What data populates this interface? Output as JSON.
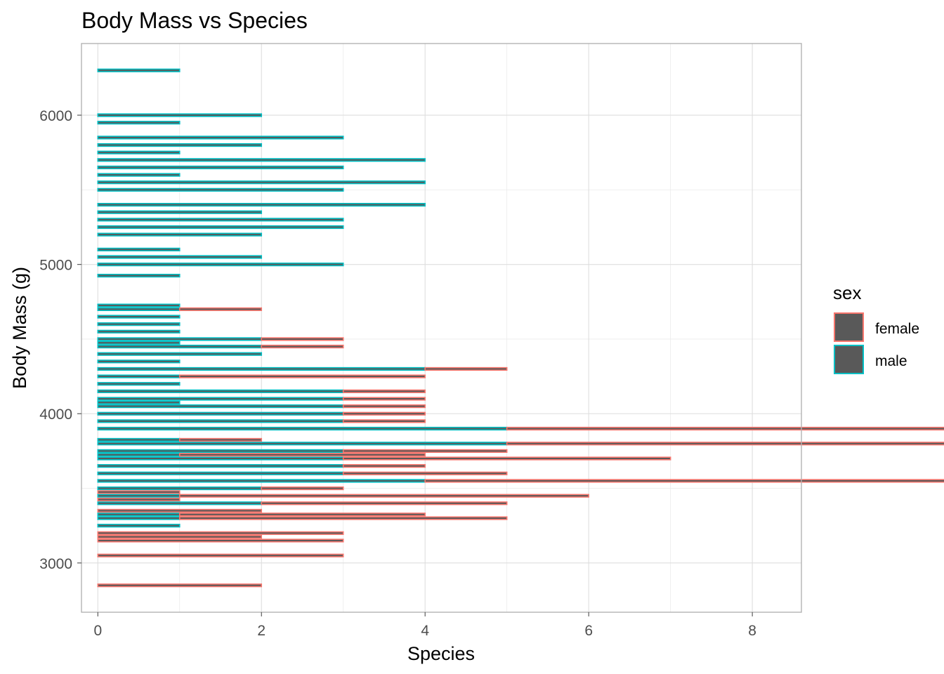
{
  "chart_data": {
    "type": "bar",
    "orientation": "horizontal",
    "stacked": true,
    "title": "Body Mass vs Species",
    "xlabel": "Species",
    "ylabel": "Body Mass (g)",
    "xlim": [
      -0.2,
      8.6
    ],
    "ylim": [
      2670,
      6480
    ],
    "x_ticks": [
      "0",
      "2",
      "4",
      "6",
      "8"
    ],
    "y_ticks": [
      "3000",
      "4000",
      "5000",
      "6000"
    ],
    "grid": true,
    "bar_fill": "#595959",
    "legend": {
      "title": "sex",
      "position": "right"
    },
    "series": [
      {
        "name": "female",
        "color": "#F8766D",
        "points": [
          [
            2850,
            2
          ],
          [
            3050,
            3
          ],
          [
            3150,
            3
          ],
          [
            3175,
            2
          ],
          [
            3200,
            3
          ],
          [
            3300,
            4
          ],
          [
            3325,
            3
          ],
          [
            3350,
            2
          ],
          [
            3400,
            3
          ],
          [
            3425,
            1
          ],
          [
            3450,
            5
          ],
          [
            3475,
            1
          ],
          [
            3500,
            1
          ],
          [
            3550,
            7
          ],
          [
            3600,
            2
          ],
          [
            3650,
            1
          ],
          [
            3700,
            4
          ],
          [
            3725,
            3
          ],
          [
            3750,
            2
          ],
          [
            3800,
            8
          ],
          [
            3825,
            1
          ],
          [
            3900,
            6
          ],
          [
            3950,
            1
          ],
          [
            4000,
            1
          ],
          [
            4050,
            1
          ],
          [
            4100,
            1
          ],
          [
            4150,
            1
          ],
          [
            4250,
            3
          ],
          [
            4300,
            1
          ],
          [
            4450,
            1
          ],
          [
            4500,
            1
          ],
          [
            4700,
            1
          ]
        ]
      },
      {
        "name": "male",
        "color": "#00BFC4",
        "points": [
          [
            3250,
            1
          ],
          [
            3300,
            1
          ],
          [
            3325,
            1
          ],
          [
            3400,
            2
          ],
          [
            3450,
            1
          ],
          [
            3500,
            2
          ],
          [
            3550,
            4
          ],
          [
            3600,
            3
          ],
          [
            3650,
            3
          ],
          [
            3700,
            3
          ],
          [
            3725,
            1
          ],
          [
            3750,
            3
          ],
          [
            3800,
            5
          ],
          [
            3825,
            1
          ],
          [
            3900,
            5
          ],
          [
            3950,
            3
          ],
          [
            4000,
            3
          ],
          [
            4050,
            3
          ],
          [
            4075,
            1
          ],
          [
            4100,
            3
          ],
          [
            4150,
            3
          ],
          [
            4200,
            1
          ],
          [
            4250,
            1
          ],
          [
            4300,
            4
          ],
          [
            4350,
            1
          ],
          [
            4400,
            2
          ],
          [
            4450,
            2
          ],
          [
            4475,
            1
          ],
          [
            4500,
            2
          ],
          [
            4550,
            1
          ],
          [
            4600,
            1
          ],
          [
            4650,
            1
          ],
          [
            4700,
            1
          ],
          [
            4725,
            1
          ],
          [
            4925,
            1
          ],
          [
            5000,
            3
          ],
          [
            5050,
            2
          ],
          [
            5100,
            1
          ],
          [
            5200,
            2
          ],
          [
            5250,
            3
          ],
          [
            5300,
            3
          ],
          [
            5350,
            2
          ],
          [
            5400,
            4
          ],
          [
            5500,
            3
          ],
          [
            5550,
            4
          ],
          [
            5600,
            1
          ],
          [
            5650,
            3
          ],
          [
            5700,
            4
          ],
          [
            5750,
            1
          ],
          [
            5800,
            2
          ],
          [
            5850,
            3
          ],
          [
            5950,
            1
          ],
          [
            6000,
            2
          ],
          [
            6300,
            1
          ]
        ]
      }
    ]
  }
}
